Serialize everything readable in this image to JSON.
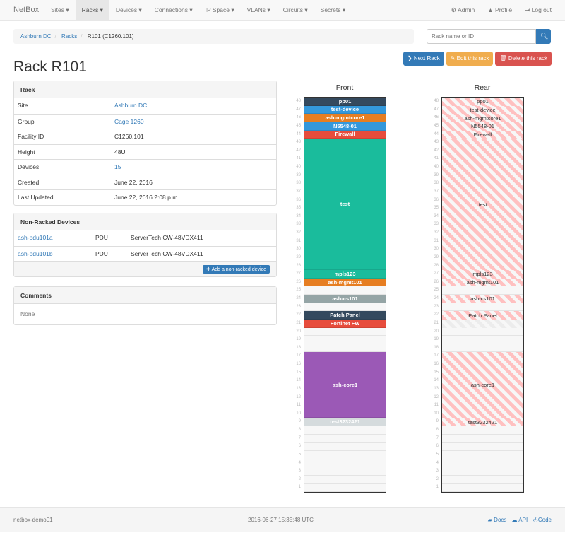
{
  "navbar": {
    "brand": "NetBox",
    "items": [
      {
        "label": "Sites ▾"
      },
      {
        "label": "Racks ▾",
        "active": true
      },
      {
        "label": "Devices ▾"
      },
      {
        "label": "Connections ▾"
      },
      {
        "label": "IP Space ▾"
      },
      {
        "label": "VLANs ▾"
      },
      {
        "label": "Circuits ▾"
      },
      {
        "label": "Secrets ▾"
      }
    ],
    "right": [
      {
        "icon": "gear-icon",
        "glyph": "⚙",
        "label": "Admin"
      },
      {
        "icon": "user-icon",
        "glyph": "👤",
        "label": "Profile"
      },
      {
        "icon": "logout-icon",
        "glyph": "⇥",
        "label": "Log out"
      }
    ]
  },
  "breadcrumb": [
    "Ashburn DC",
    "Racks",
    "R101 (C1260.101)"
  ],
  "search": {
    "placeholder": "Rack name or ID",
    "icon": "search-icon"
  },
  "actions": {
    "next": "Next Rack",
    "edit": "Edit this rack",
    "delete": "Delete this rack",
    "colors": {
      "next": "#337ab7",
      "edit": "#f0ad4e",
      "delete": "#d9534f"
    }
  },
  "title": "Rack R101",
  "rack_panel": {
    "heading": "Rack",
    "rows": [
      {
        "k": "Site",
        "v": "Ashburn DC",
        "link": true
      },
      {
        "k": "Group",
        "v": "Cage 1260",
        "link": true
      },
      {
        "k": "Facility ID",
        "v": "C1260.101"
      },
      {
        "k": "Height",
        "v": "48U"
      },
      {
        "k": "Devices",
        "v": "15",
        "link": true
      },
      {
        "k": "Created",
        "v": "June 22, 2016"
      },
      {
        "k": "Last Updated",
        "v": "June 22, 2016 2:08 p.m."
      }
    ]
  },
  "nonracked": {
    "heading": "Non-Racked Devices",
    "rows": [
      {
        "name": "ash-pdu101a",
        "role": "PDU",
        "type": "ServerTech CW-48VDX411"
      },
      {
        "name": "ash-pdu101b",
        "role": "PDU",
        "type": "ServerTech CW-48VDX411"
      }
    ],
    "add_label": "Add a non-racked device"
  },
  "comments": {
    "heading": "Comments",
    "text": "None"
  },
  "rack": {
    "front_title": "Front",
    "rear_title": "Rear",
    "units": 48,
    "devices": [
      {
        "name": "pp01",
        "top": 48,
        "size": 1,
        "color": "#34495e",
        "rear": true
      },
      {
        "name": "test-device",
        "top": 47,
        "size": 1,
        "color": "#3498db",
        "rear": true
      },
      {
        "name": "ash-mgmtcore1",
        "top": 46,
        "size": 1,
        "color": "#e67e22",
        "rear": true
      },
      {
        "name": "N5548-01",
        "top": 45,
        "size": 1,
        "color": "#3498db",
        "rear": true
      },
      {
        "name": "Firewall",
        "top": 44,
        "size": 1,
        "color": "#e74c3c",
        "rear": true
      },
      {
        "name": "test",
        "top": 43,
        "size": 16,
        "color": "#1abc9c",
        "rear": true
      },
      {
        "name": "mpls123",
        "top": 27,
        "size": 1,
        "color": "#1abc9c",
        "rear": true
      },
      {
        "name": "ash-mgmt101",
        "top": 26,
        "size": 1,
        "color": "#e67e22",
        "rear": true
      },
      {
        "name": "ash-cs101",
        "top": 24,
        "size": 1,
        "color": "#95a5a6",
        "rear": true
      },
      {
        "name": "Patch Panel",
        "top": 22,
        "size": 1,
        "color": "#34495e",
        "rear": true
      },
      {
        "name": "Fortinet FW",
        "top": 21,
        "size": 1,
        "color": "#e74c3c",
        "rear": false
      },
      {
        "name": "ash-core1",
        "top": 17,
        "size": 8,
        "color": "#9b59b6",
        "rear": true
      },
      {
        "name": "test3232421",
        "top": 9,
        "size": 1,
        "color": "#d5dbdd",
        "rear": true
      }
    ]
  },
  "footer": {
    "host": "netbox-demo01",
    "time": "2016-06-27 15:35:48 UTC",
    "links": [
      {
        "icon": "book-icon",
        "label": "Docs"
      },
      {
        "icon": "cloud-icon",
        "label": "API"
      },
      {
        "icon": "code-icon",
        "label": "Code"
      }
    ]
  }
}
